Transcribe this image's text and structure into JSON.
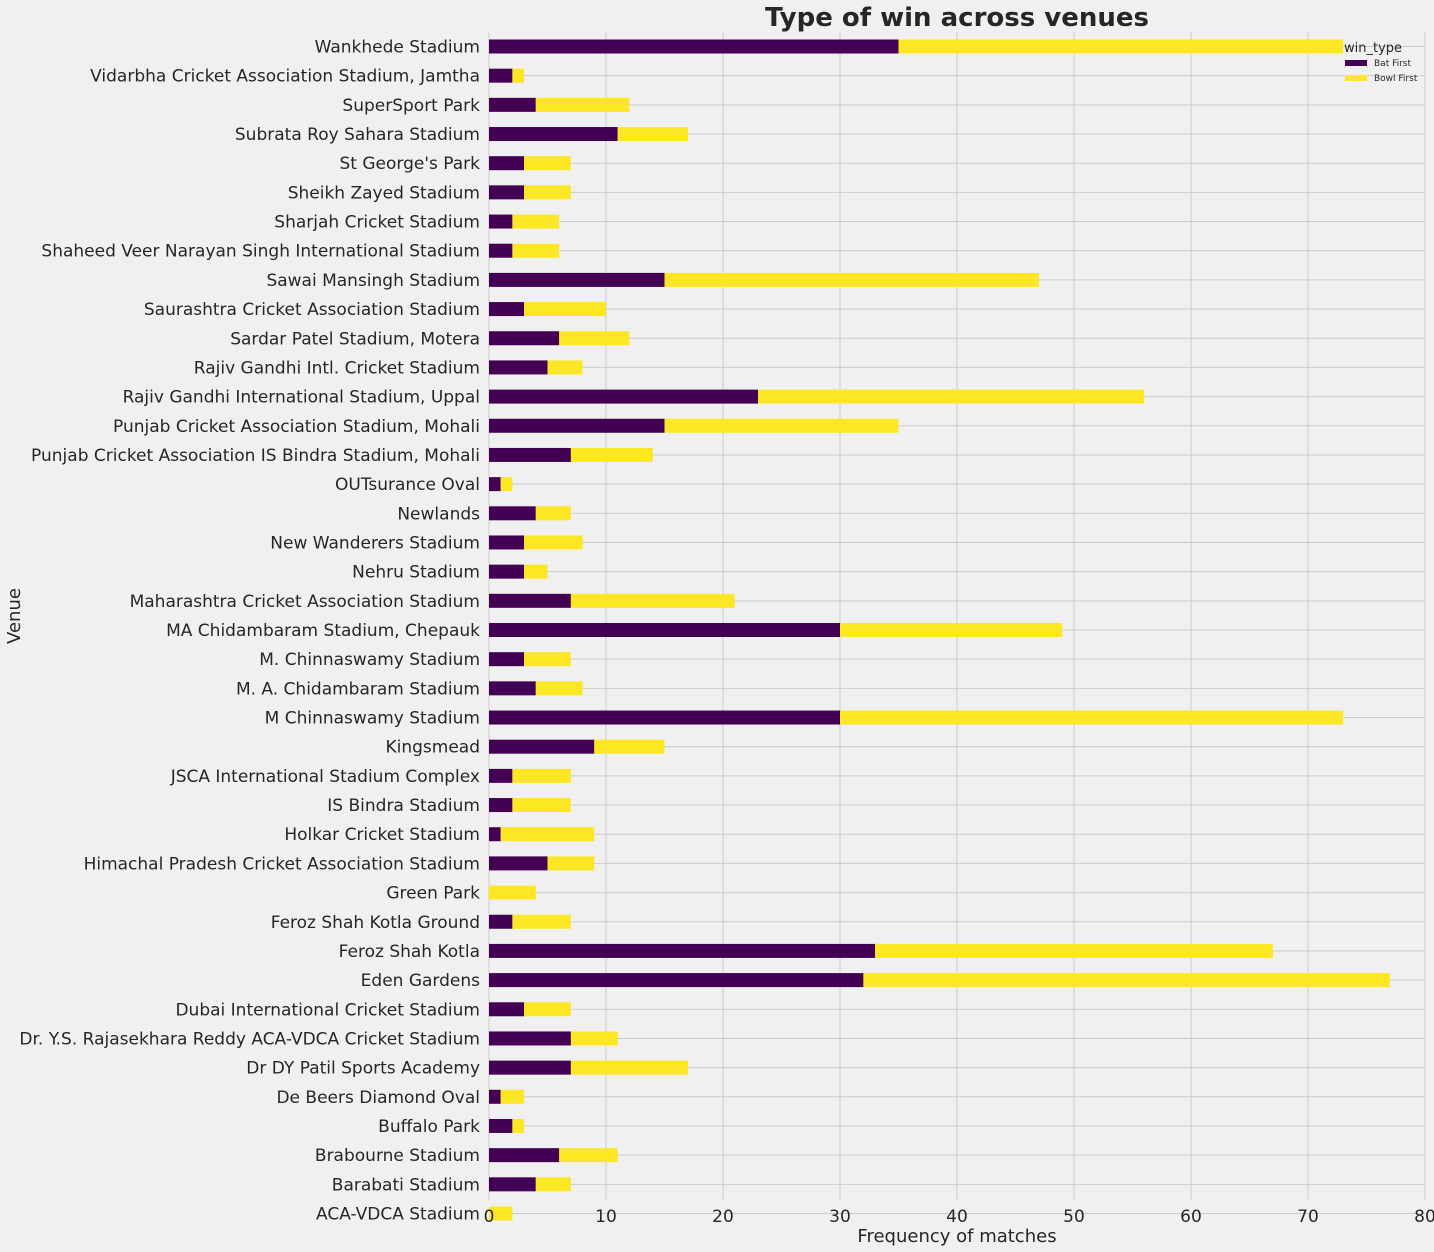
{
  "chart_data": {
    "type": "bar",
    "orientation": "horizontal",
    "stacked": true,
    "title": "Type of win across venues",
    "xlabel": "Frequency of matches",
    "ylabel": "Venue",
    "xlim": [
      0,
      80
    ],
    "xticks": [
      0,
      10,
      20,
      30,
      40,
      50,
      60,
      70,
      80
    ],
    "grid": true,
    "legend": {
      "title": "win_type",
      "position": "top-right"
    },
    "categories": [
      "Wankhede Stadium",
      "Vidarbha Cricket Association Stadium, Jamtha",
      "SuperSport Park",
      "Subrata Roy Sahara Stadium",
      "St George's Park",
      "Sheikh Zayed Stadium",
      "Sharjah Cricket Stadium",
      "Shaheed Veer Narayan Singh International Stadium",
      "Sawai Mansingh Stadium",
      "Saurashtra Cricket Association Stadium",
      "Sardar Patel Stadium, Motera",
      "Rajiv Gandhi Intl. Cricket Stadium",
      "Rajiv Gandhi International Stadium, Uppal",
      "Punjab Cricket Association Stadium, Mohali",
      "Punjab Cricket Association IS Bindra Stadium, Mohali",
      "OUTsurance Oval",
      "Newlands",
      "New Wanderers Stadium",
      "Nehru Stadium",
      "Maharashtra Cricket Association Stadium",
      "MA Chidambaram Stadium, Chepauk",
      "M. Chinnaswamy Stadium",
      "M. A. Chidambaram Stadium",
      "M Chinnaswamy Stadium",
      "Kingsmead",
      "JSCA International Stadium Complex",
      "IS Bindra Stadium",
      "Holkar Cricket Stadium",
      "Himachal Pradesh Cricket Association Stadium",
      "Green Park",
      "Feroz Shah Kotla Ground",
      "Feroz Shah Kotla",
      "Eden Gardens",
      "Dubai International Cricket Stadium",
      "Dr. Y.S. Rajasekhara Reddy ACA-VDCA Cricket Stadium",
      "Dr DY Patil Sports Academy",
      "De Beers Diamond Oval",
      "Buffalo Park",
      "Brabourne Stadium",
      "Barabati Stadium",
      "ACA-VDCA Stadium"
    ],
    "series": [
      {
        "name": "Bat First",
        "color": "#440154",
        "values": [
          35,
          2,
          4,
          11,
          3,
          3,
          2,
          2,
          15,
          3,
          6,
          5,
          23,
          15,
          7,
          1,
          4,
          3,
          3,
          7,
          30,
          3,
          4,
          30,
          9,
          2,
          2,
          1,
          5,
          0,
          2,
          33,
          32,
          3,
          7,
          7,
          1,
          2,
          6,
          4,
          0
        ]
      },
      {
        "name": "Bowl First",
        "color": "#fde725",
        "values": [
          38,
          1,
          8,
          6,
          4,
          4,
          4,
          4,
          32,
          7,
          6,
          3,
          33,
          20,
          7,
          1,
          3,
          5,
          2,
          14,
          19,
          4,
          4,
          43,
          6,
          5,
          5,
          8,
          4,
          4,
          5,
          34,
          45,
          4,
          4,
          10,
          2,
          1,
          5,
          3,
          2
        ]
      }
    ]
  }
}
